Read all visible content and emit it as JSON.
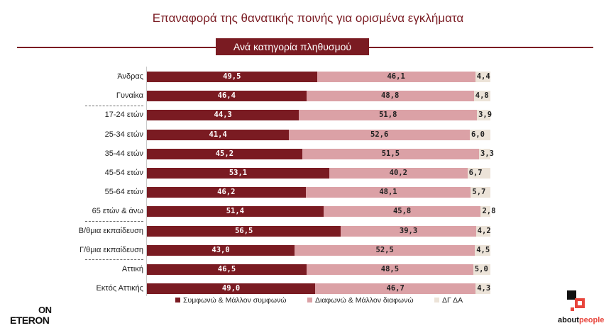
{
  "title": "Επαναφορά της θανατικής ποινής για ορισμένα εγκλήματα",
  "subtitle": "Ανά κατηγορία πληθυσμού",
  "logos": {
    "left_top": "ON",
    "left_bottom": "ETERON",
    "right_main": "about",
    "right_accent": "people"
  },
  "colors": {
    "agree": "#7a1b22",
    "disagree": "#dba1a6",
    "dk": "#ece3d8",
    "title": "#7a1b22"
  },
  "chart_data": {
    "type": "bar",
    "orientation": "horizontal",
    "stacked": true,
    "normalized_to": 100,
    "xlim": [
      0,
      100
    ],
    "legend_position": "bottom",
    "categories": [
      "Άνδρας",
      "Γυναίκα",
      "17-24 ετών",
      "25-34 ετών",
      "35-44 ετών",
      "45-54 ετών",
      "55-64 ετών",
      "65 ετών & άνω",
      "Β/θμια εκπαίδευση",
      "Γ/θμια εκπαίδευση",
      "Αττική",
      "Εκτός Αττικής"
    ],
    "groups_end_after": [
      1,
      7,
      9
    ],
    "series": [
      {
        "name": "Συμφωνώ & Μάλλον συμφωνώ",
        "values": [
          49.5,
          46.4,
          44.3,
          41.4,
          45.2,
          53.1,
          46.2,
          51.4,
          56.5,
          43.0,
          46.5,
          49.0
        ],
        "labels": [
          "49,5",
          "46,4",
          "44,3",
          "41,4",
          "45,2",
          "53,1",
          "46,2",
          "51,4",
          "56,5",
          "43,0",
          "46,5",
          "49,0"
        ]
      },
      {
        "name": "Διαφωνώ & Μάλλον διαφωνώ",
        "values": [
          46.1,
          48.8,
          51.8,
          52.6,
          51.5,
          40.2,
          48.1,
          45.8,
          39.3,
          52.5,
          48.5,
          46.7
        ],
        "labels": [
          "46,1",
          "48,8",
          "51,8",
          "52,6",
          "51,5",
          "40,2",
          "48,1",
          "45,8",
          "39,3",
          "52,5",
          "48,5",
          "46,7"
        ]
      },
      {
        "name": "ΔΓ ΔΑ",
        "values": [
          4.4,
          4.8,
          3.9,
          6.0,
          3.3,
          6.7,
          5.7,
          2.8,
          4.2,
          4.5,
          5.0,
          4.3
        ],
        "labels": [
          "4,4",
          "4,8",
          "3,9",
          "6,0",
          "3,3",
          "6,7",
          "5,7",
          "2,8",
          "4,2",
          "4,5",
          "5,0",
          "4,3"
        ]
      }
    ]
  }
}
